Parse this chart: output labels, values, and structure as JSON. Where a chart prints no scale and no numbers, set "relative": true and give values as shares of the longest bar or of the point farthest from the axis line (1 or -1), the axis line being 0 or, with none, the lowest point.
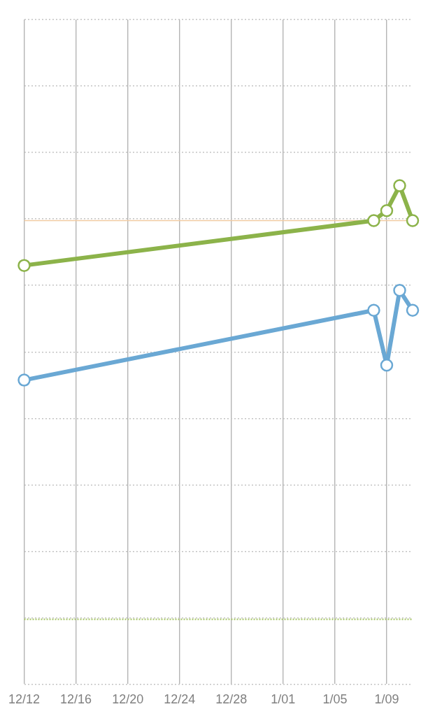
{
  "chart_data": {
    "type": "line",
    "categories": [
      "12/12",
      null,
      null,
      null,
      "12/16",
      null,
      null,
      null,
      "12/20",
      null,
      null,
      null,
      "12/24",
      null,
      null,
      null,
      "12/28",
      null,
      null,
      null,
      "1/01",
      null,
      null,
      null,
      "1/05",
      null,
      null,
      null,
      "1/09",
      null,
      null
    ],
    "series": [
      {
        "color": "#8cb34a",
        "values": [
          0.84,
          null,
          null,
          null,
          null,
          null,
          null,
          null,
          null,
          null,
          null,
          null,
          null,
          null,
          null,
          null,
          null,
          null,
          null,
          null,
          null,
          null,
          null,
          null,
          null,
          null,
          null,
          0.93,
          0.95,
          1,
          0.93
        ]
      },
      {
        "color": "#6aa8d4",
        "values": [
          0.61,
          null,
          null,
          null,
          null,
          null,
          null,
          null,
          null,
          null,
          null,
          null,
          null,
          null,
          null,
          null,
          null,
          null,
          null,
          null,
          null,
          null,
          null,
          null,
          null,
          null,
          null,
          0.75,
          0.64,
          0.79,
          0.75
        ]
      }
    ],
    "relative": true,
    "grid": true,
    "marker": "circle",
    "ref_lines": [
      {
        "axis": "y",
        "value": 0.93,
        "color": "#f1cba2"
      },
      {
        "axis": "y",
        "value": 0.13,
        "color": "#b3cd7c",
        "line_style": "dotted"
      }
    ]
  }
}
